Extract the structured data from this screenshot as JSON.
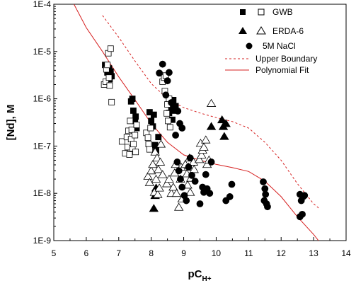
{
  "chart_data": {
    "type": "scatter",
    "xlabel": "pC",
    "xlabel_sub": "H+",
    "ylabel": "[Nd], M",
    "xlim": [
      5,
      14
    ],
    "ylim_log10": [
      -9,
      -4
    ],
    "y_scale": "log",
    "x_ticks": [
      "5",
      "6",
      "7",
      "8",
      "9",
      "10",
      "11",
      "12",
      "13",
      "14"
    ],
    "y_ticks": [
      "1E-9",
      "1E-8",
      "1E-7",
      "1E-6",
      "1E-5",
      "1E-4"
    ],
    "legend_placement": "top-right",
    "legend": {
      "gwb": "GWB",
      "erda": "ERDA-6",
      "nacl": "5M NaCl",
      "upper": "Upper Boundary",
      "poly": "Polynomial Fit"
    },
    "colors": {
      "curve": "#d62020",
      "marker": "#000000"
    },
    "series": [
      {
        "key": "gwb_filled",
        "group": "GWB",
        "marker": "square",
        "fill": "filled",
        "points": [
          [
            6.58,
            5.2e-06
          ],
          [
            6.65,
            3.6e-06
          ],
          [
            6.7,
            4.4e-06
          ],
          [
            6.72,
            2.6e-06
          ],
          [
            6.75,
            3.8e-06
          ],
          [
            6.78,
            3e-06
          ],
          [
            7.38,
            8.8e-07
          ],
          [
            7.42,
            1e-06
          ],
          [
            7.45,
            5.6e-07
          ],
          [
            7.5,
            3.4e-07
          ],
          [
            7.52,
            4.2e-07
          ],
          [
            7.55,
            2.4e-07
          ],
          [
            7.95,
            5.2e-07
          ],
          [
            8.0,
            3.4e-07
          ],
          [
            8.05,
            2.6e-07
          ],
          [
            8.08,
            4.6e-07
          ],
          [
            8.12,
            1.05e-07
          ],
          [
            8.15,
            8e-08
          ],
          [
            8.22,
            1.55e-07
          ],
          [
            8.55,
            5e-07
          ],
          [
            8.58,
            8.2e-07
          ],
          [
            8.62,
            6.2e-07
          ],
          [
            8.65,
            3.6e-07
          ],
          [
            8.68,
            9.4e-07
          ],
          [
            8.72,
            5.6e-07
          ],
          [
            8.75,
            7e-07
          ]
        ]
      },
      {
        "key": "gwb_open",
        "group": "GWB",
        "marker": "square",
        "fill": "open",
        "points": [
          [
            6.55,
            2e-06
          ],
          [
            6.6,
            2.3e-06
          ],
          [
            6.62,
            4.2e-06
          ],
          [
            6.65,
            5.2e-06
          ],
          [
            6.68,
            9.2e-06
          ],
          [
            6.7,
            2.8e-06
          ],
          [
            6.72,
            1.9e-06
          ],
          [
            6.75,
            1.15e-05
          ],
          [
            6.78,
            8.5e-07
          ],
          [
            7.1,
            1.25e-07
          ],
          [
            7.2,
            7e-08
          ],
          [
            7.25,
            1.55e-07
          ],
          [
            7.28,
            9.5e-08
          ],
          [
            7.3,
            2.1e-07
          ],
          [
            7.33,
            6.6e-08
          ],
          [
            7.35,
            3.4e-07
          ],
          [
            7.38,
            1.4e-07
          ],
          [
            7.4,
            2.2e-07
          ],
          [
            7.42,
            9e-08
          ],
          [
            7.45,
            1.1e-07
          ],
          [
            7.5,
            1.7e-07
          ],
          [
            7.52,
            7.5e-08
          ],
          [
            7.55,
            2.8e-07
          ],
          [
            7.85,
            1.9e-07
          ],
          [
            7.9,
            1.5e-07
          ],
          [
            7.92,
            1.1e-07
          ],
          [
            7.95,
            8.5e-08
          ],
          [
            7.98,
            2.4e-07
          ],
          [
            8.35,
            2.3e-06
          ],
          [
            8.4,
            2.8e-06
          ],
          [
            8.42,
            1.45e-06
          ],
          [
            8.45,
            3.1e-06
          ],
          [
            8.48,
            4.9e-07
          ],
          [
            8.5,
            7.6e-07
          ],
          [
            8.52,
            3.4e-07
          ],
          [
            8.55,
            1e-06
          ],
          [
            8.58,
            2.5e-07
          ]
        ]
      },
      {
        "key": "erda_filled",
        "group": "ERDA-6",
        "marker": "triangle",
        "fill": "filled",
        "points": [
          [
            8.08,
            4.8e-09
          ],
          [
            8.12,
            9e-09
          ],
          [
            8.15,
            1.3e-08
          ],
          [
            9.85,
            2.6e-07
          ],
          [
            10.18,
            3.6e-07
          ],
          [
            10.22,
            2.6e-07
          ],
          [
            10.25,
            1.6e-07
          ],
          [
            10.3,
            3e-07
          ]
        ]
      },
      {
        "key": "erda_open",
        "group": "ERDA-6",
        "marker": "triangle",
        "fill": "open",
        "points": [
          [
            7.9,
            2.3e-08
          ],
          [
            7.95,
            1.7e-08
          ],
          [
            8.0,
            3e-08
          ],
          [
            8.05,
            4.1e-08
          ],
          [
            8.1,
            1.05e-08
          ],
          [
            8.12,
            7.5e-08
          ],
          [
            8.15,
            2e-08
          ],
          [
            8.18,
            5.6e-08
          ],
          [
            8.2,
            9.5e-09
          ],
          [
            8.22,
            3.2e-08
          ],
          [
            8.25,
            1.3e-08
          ],
          [
            8.28,
            4.6e-08
          ],
          [
            8.3,
            1.1e-07
          ],
          [
            8.35,
            2.5e-08
          ],
          [
            8.48,
            1.6e-08
          ],
          [
            8.55,
            2e-08
          ],
          [
            8.62,
            1e-08
          ],
          [
            8.68,
            1.35e-08
          ],
          [
            8.72,
            2.7e-08
          ],
          [
            8.75,
            4.1e-08
          ],
          [
            8.78,
            1e-08
          ],
          [
            8.85,
            5.1e-09
          ],
          [
            8.9,
            2e-08
          ],
          [
            8.92,
            3.6e-08
          ],
          [
            8.95,
            7.6e-09
          ],
          [
            9.05,
            4.1e-08
          ],
          [
            9.1,
            2.6e-08
          ],
          [
            9.12,
            1.5e-08
          ],
          [
            9.15,
            3.6e-08
          ],
          [
            9.18,
            5.6e-08
          ],
          [
            9.2,
            1.05e-08
          ],
          [
            9.22,
            2.1e-08
          ],
          [
            9.3,
            4.6e-08
          ],
          [
            9.32,
            3.2e-08
          ],
          [
            9.48,
            5.2e-08
          ],
          [
            9.52,
            1.15e-07
          ],
          [
            9.55,
            6.5e-08
          ],
          [
            9.58,
            8.2e-08
          ],
          [
            9.62,
            9.5e-08
          ],
          [
            9.68,
            1.35e-07
          ],
          [
            9.72,
            4.1e-08
          ],
          [
            9.78,
            5.1e-08
          ],
          [
            9.85,
            8e-07
          ]
        ]
      },
      {
        "key": "nacl_filled",
        "group": "5M NaCl",
        "marker": "circle",
        "fill": "filled",
        "points": [
          [
            8.25,
            3.5e-06
          ],
          [
            8.35,
            5.4e-06
          ],
          [
            8.45,
            1.2e-06
          ],
          [
            8.5,
            2.4e-06
          ],
          [
            8.55,
            3.6e-06
          ],
          [
            8.62,
            8.3e-07
          ],
          [
            8.68,
            6.2e-07
          ],
          [
            8.75,
            1.7e-07
          ],
          [
            8.82,
            5.5e-07
          ],
          [
            8.88,
            3e-07
          ],
          [
            8.95,
            2.4e-07
          ],
          [
            8.8,
            4.6e-08
          ],
          [
            8.85,
            3e-08
          ],
          [
            8.9,
            2e-08
          ],
          [
            8.95,
            1.35e-08
          ],
          [
            9.02,
            9e-09
          ],
          [
            9.08,
            7e-09
          ],
          [
            9.15,
            3.6e-08
          ],
          [
            9.2,
            5.6e-08
          ],
          [
            9.25,
            2.4e-08
          ],
          [
            9.35,
            1.8e-08
          ],
          [
            9.5,
            6e-09
          ],
          [
            9.58,
            1.35e-08
          ],
          [
            9.62,
            1.05e-08
          ],
          [
            9.68,
            2.5e-08
          ],
          [
            9.72,
            1.25e-08
          ],
          [
            9.8,
            1e-08
          ],
          [
            9.85,
            4.6e-08
          ],
          [
            10.3,
            7e-09
          ],
          [
            10.42,
            8.5e-09
          ],
          [
            10.48,
            1.55e-08
          ],
          [
            11.45,
            1.75e-08
          ],
          [
            11.48,
            7e-09
          ],
          [
            11.5,
            1.25e-08
          ],
          [
            11.52,
            9.5e-09
          ],
          [
            11.55,
            6e-09
          ],
          [
            11.58,
            5.2e-09
          ],
          [
            12.58,
            9.5e-09
          ],
          [
            12.62,
            7e-09
          ],
          [
            12.65,
            3.6e-09
          ],
          [
            12.68,
            8.5e-09
          ],
          [
            12.72,
            9e-09
          ],
          [
            12.58,
            3.2e-09
          ]
        ]
      }
    ],
    "polynomial_fit": [
      [
        5.62,
        0.0001
      ],
      [
        6.0,
        3.2e-05
      ],
      [
        6.5,
        1e-05
      ],
      [
        7.0,
        2.9e-06
      ],
      [
        7.5,
        9.5e-07
      ],
      [
        8.0,
        3e-07
      ],
      [
        8.5,
        1.2e-07
      ],
      [
        9.0,
        6.5e-08
      ],
      [
        9.5,
        5e-08
      ],
      [
        10.0,
        4.1e-08
      ],
      [
        10.5,
        3.5e-08
      ],
      [
        11.0,
        2.9e-08
      ],
      [
        11.5,
        1.8e-08
      ],
      [
        12.0,
        8.5e-09
      ],
      [
        12.5,
        3.2e-09
      ],
      [
        13.0,
        1.35e-09
      ],
      [
        13.15,
        1e-09
      ]
    ],
    "upper_boundary": [
      [
        6.5,
        5.8e-05
      ],
      [
        7.0,
        2e-05
      ],
      [
        7.5,
        6.3e-06
      ],
      [
        8.0,
        2.1e-06
      ],
      [
        8.5,
        1e-06
      ],
      [
        9.0,
        6.5e-07
      ],
      [
        9.5,
        5e-07
      ],
      [
        10.0,
        4e-07
      ],
      [
        10.5,
        3.3e-07
      ],
      [
        11.0,
        2.4e-07
      ],
      [
        11.5,
        1.2e-07
      ],
      [
        12.0,
        5e-08
      ],
      [
        12.5,
        1.6e-08
      ],
      [
        13.0,
        6e-09
      ],
      [
        13.2,
        4.6e-09
      ]
    ]
  }
}
